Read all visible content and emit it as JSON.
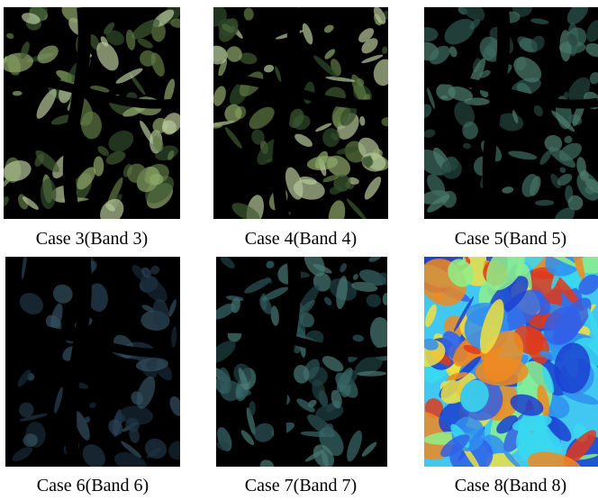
{
  "panels": [
    {
      "caption": "Case 3(Band 3)"
    },
    {
      "caption": "Case 4(Band 4)"
    },
    {
      "caption": "Case 5(Band 5)"
    },
    {
      "caption": "Case 6(Band 6)"
    },
    {
      "caption": "Case 7(Band 7)"
    },
    {
      "caption": "Case 8(Band 8)"
    }
  ]
}
